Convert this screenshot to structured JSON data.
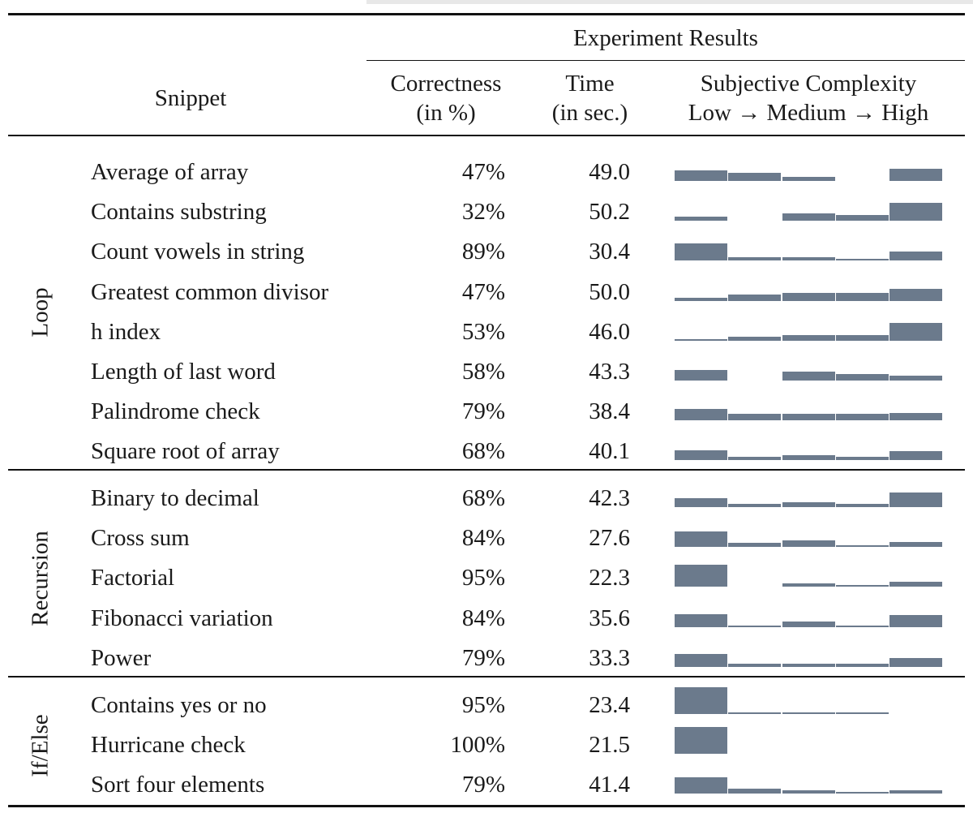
{
  "header": {
    "experiment_results": "Experiment Results",
    "snippet": "Snippet",
    "correctness_line1": "Correctness",
    "correctness_line2": "(in %)",
    "time_line1": "Time",
    "time_line2": "(in sec.)",
    "complexity_line1": "Subjective Complexity",
    "complexity_line2": "Low → Medium → High"
  },
  "groups": [
    {
      "label": "Loop",
      "rows": [
        {
          "snippet": "Average of array",
          "correctness": "47%",
          "time": "49.0",
          "complexity": [
            0.32,
            0.24,
            0.12,
            0,
            0.38
          ]
        },
        {
          "snippet": "Contains substring",
          "correctness": "32%",
          "time": "50.2",
          "complexity": [
            0.12,
            0,
            0.24,
            0.18,
            0.55
          ]
        },
        {
          "snippet": "Count vowels in string",
          "correctness": "89%",
          "time": "30.4",
          "complexity": [
            0.54,
            0.1,
            0.1,
            0.05,
            0.28
          ]
        },
        {
          "snippet": "Greatest common divisor",
          "correctness": "47%",
          "time": "50.0",
          "complexity": [
            0.1,
            0.18,
            0.24,
            0.24,
            0.36
          ]
        },
        {
          "snippet": "h index",
          "correctness": "53%",
          "time": "46.0",
          "complexity": [
            0.05,
            0.12,
            0.18,
            0.18,
            0.55
          ]
        },
        {
          "snippet": "Length of last word",
          "correctness": "58%",
          "time": "43.3",
          "complexity": [
            0.32,
            0,
            0.28,
            0.2,
            0.16
          ]
        },
        {
          "snippet": "Palindrome check",
          "correctness": "79%",
          "time": "38.4",
          "complexity": [
            0.36,
            0.2,
            0.2,
            0.2,
            0.24
          ]
        },
        {
          "snippet": "Square root of array",
          "correctness": "68%",
          "time": "40.1",
          "complexity": [
            0.32,
            0.1,
            0.16,
            0.1,
            0.28
          ]
        }
      ]
    },
    {
      "label": "Recursion",
      "rows": [
        {
          "snippet": "Binary to decimal",
          "correctness": "68%",
          "time": "42.3",
          "complexity": [
            0.28,
            0.1,
            0.16,
            0.1,
            0.44
          ]
        },
        {
          "snippet": "Cross sum",
          "correctness": "84%",
          "time": "27.6",
          "complexity": [
            0.48,
            0.12,
            0.2,
            0.05,
            0.16
          ]
        },
        {
          "snippet": "Factorial",
          "correctness": "95%",
          "time": "22.3",
          "complexity": [
            0.68,
            0,
            0.1,
            0.05,
            0.16
          ]
        },
        {
          "snippet": "Fibonacci variation",
          "correctness": "84%",
          "time": "35.6",
          "complexity": [
            0.4,
            0.05,
            0.16,
            0.05,
            0.36
          ]
        },
        {
          "snippet": "Power",
          "correctness": "79%",
          "time": "33.3",
          "complexity": [
            0.4,
            0.1,
            0.1,
            0.1,
            0.28
          ]
        }
      ]
    },
    {
      "label": "If/Else",
      "rows": [
        {
          "snippet": "Contains yes or no",
          "correctness": "95%",
          "time": "23.4",
          "complexity": [
            0.82,
            0.05,
            0.05,
            0.05,
            0
          ]
        },
        {
          "snippet": "Hurricane check",
          "correctness": "100%",
          "time": "21.5",
          "complexity": [
            0.82,
            0,
            0,
            0,
            0
          ]
        },
        {
          "snippet": "Sort four elements",
          "correctness": "79%",
          "time": "41.4",
          "complexity": [
            0.52,
            0.16,
            0.1,
            0.05,
            0.12
          ]
        }
      ]
    }
  ],
  "colors": {
    "bar": "#6b7a8c",
    "rule": "#111111"
  }
}
